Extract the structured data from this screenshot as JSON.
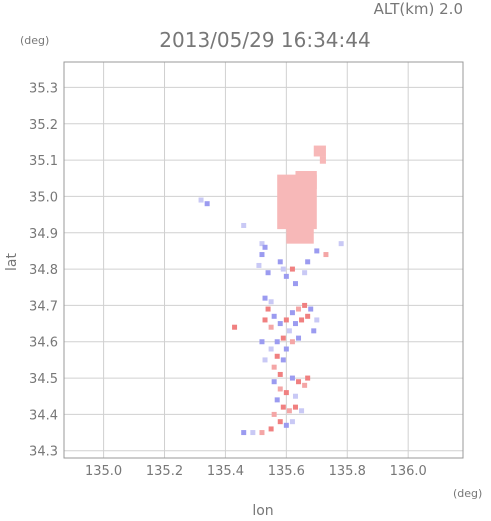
{
  "header": {
    "alt_label": "ALT(km) 2.0",
    "timestamp": "2013/05/29 16:34:44",
    "y_unit": "(deg)",
    "x_unit": "(deg)"
  },
  "chart_data": {
    "type": "scatter",
    "title": "2013/05/29 16:34:44",
    "subtitle": "ALT(km) 2.0",
    "xlabel": "lon",
    "ylabel": "lat",
    "xunit": "(deg)",
    "yunit": "(deg)",
    "xlim": [
      134.87,
      136.18
    ],
    "ylim": [
      34.28,
      35.37
    ],
    "xticks": [
      135.0,
      135.2,
      135.4,
      135.6,
      135.8,
      136.0
    ],
    "xtick_labels": [
      "135.0",
      "135.2",
      "135.4",
      "135.6",
      "135.8",
      "136.0"
    ],
    "yticks": [
      34.3,
      34.4,
      34.5,
      34.6,
      34.7,
      34.8,
      34.9,
      35.0,
      35.1,
      35.2,
      35.3
    ],
    "ytick_labels": [
      "34.3",
      "34.4",
      "34.5",
      "34.6",
      "34.7",
      "34.8",
      "34.9",
      "35.0",
      "35.1",
      "35.2",
      "35.3"
    ],
    "grid": true,
    "colors": {
      "main_echo": "#f7b8b8",
      "red": "#f08080",
      "blue": "#9b9bf0",
      "light_blue": "#c9c9f5",
      "pink": "#f4a6a6"
    },
    "regions": [
      {
        "type": "rect",
        "lon": [
          135.57,
          135.7
        ],
        "lat": [
          34.91,
          35.06
        ],
        "color": "main_echo"
      },
      {
        "type": "rect",
        "lon": [
          135.6,
          135.69
        ],
        "lat": [
          34.87,
          34.92
        ],
        "color": "main_echo"
      },
      {
        "type": "rect",
        "lon": [
          135.63,
          135.7
        ],
        "lat": [
          35.02,
          35.07
        ],
        "color": "main_echo"
      },
      {
        "type": "rect",
        "lon": [
          135.69,
          135.73
        ],
        "lat": [
          35.11,
          35.14
        ],
        "color": "main_echo"
      },
      {
        "type": "rect",
        "lon": [
          135.71,
          135.73
        ],
        "lat": [
          35.09,
          35.11
        ],
        "color": "main_echo"
      }
    ],
    "points": [
      {
        "lon": 135.34,
        "lat": 34.98,
        "color": "blue"
      },
      {
        "lon": 135.32,
        "lat": 34.99,
        "color": "light_blue"
      },
      {
        "lon": 135.52,
        "lat": 34.87,
        "color": "light_blue"
      },
      {
        "lon": 135.53,
        "lat": 34.86,
        "color": "blue"
      },
      {
        "lon": 135.52,
        "lat": 34.84,
        "color": "blue"
      },
      {
        "lon": 135.51,
        "lat": 34.81,
        "color": "light_blue"
      },
      {
        "lon": 135.54,
        "lat": 34.79,
        "color": "blue"
      },
      {
        "lon": 135.58,
        "lat": 34.82,
        "color": "blue"
      },
      {
        "lon": 135.59,
        "lat": 34.8,
        "color": "light_blue"
      },
      {
        "lon": 135.6,
        "lat": 34.78,
        "color": "blue"
      },
      {
        "lon": 135.62,
        "lat": 34.8,
        "color": "red"
      },
      {
        "lon": 135.63,
        "lat": 34.76,
        "color": "blue"
      },
      {
        "lon": 135.66,
        "lat": 34.79,
        "color": "light_blue"
      },
      {
        "lon": 135.67,
        "lat": 34.82,
        "color": "blue"
      },
      {
        "lon": 135.7,
        "lat": 34.85,
        "color": "blue"
      },
      {
        "lon": 135.73,
        "lat": 34.84,
        "color": "pink"
      },
      {
        "lon": 135.78,
        "lat": 34.87,
        "color": "light_blue"
      },
      {
        "lon": 135.46,
        "lat": 34.92,
        "color": "light_blue"
      },
      {
        "lon": 135.53,
        "lat": 34.72,
        "color": "blue"
      },
      {
        "lon": 135.55,
        "lat": 34.71,
        "color": "light_blue"
      },
      {
        "lon": 135.54,
        "lat": 34.69,
        "color": "red"
      },
      {
        "lon": 135.56,
        "lat": 34.67,
        "color": "blue"
      },
      {
        "lon": 135.53,
        "lat": 34.66,
        "color": "red"
      },
      {
        "lon": 135.55,
        "lat": 34.64,
        "color": "pink"
      },
      {
        "lon": 135.58,
        "lat": 34.65,
        "color": "blue"
      },
      {
        "lon": 135.6,
        "lat": 34.66,
        "color": "red"
      },
      {
        "lon": 135.62,
        "lat": 34.68,
        "color": "blue"
      },
      {
        "lon": 135.64,
        "lat": 34.69,
        "color": "pink"
      },
      {
        "lon": 135.66,
        "lat": 34.7,
        "color": "red"
      },
      {
        "lon": 135.68,
        "lat": 34.69,
        "color": "blue"
      },
      {
        "lon": 135.67,
        "lat": 34.67,
        "color": "red"
      },
      {
        "lon": 135.65,
        "lat": 34.66,
        "color": "red"
      },
      {
        "lon": 135.63,
        "lat": 34.65,
        "color": "blue"
      },
      {
        "lon": 135.61,
        "lat": 34.63,
        "color": "light_blue"
      },
      {
        "lon": 135.59,
        "lat": 34.61,
        "color": "red"
      },
      {
        "lon": 135.57,
        "lat": 34.6,
        "color": "blue"
      },
      {
        "lon": 135.6,
        "lat": 34.58,
        "color": "blue"
      },
      {
        "lon": 135.62,
        "lat": 34.6,
        "color": "pink"
      },
      {
        "lon": 135.64,
        "lat": 34.61,
        "color": "blue"
      },
      {
        "lon": 135.55,
        "lat": 34.58,
        "color": "light_blue"
      },
      {
        "lon": 135.57,
        "lat": 34.56,
        "color": "red"
      },
      {
        "lon": 135.59,
        "lat": 34.55,
        "color": "blue"
      },
      {
        "lon": 135.56,
        "lat": 34.53,
        "color": "pink"
      },
      {
        "lon": 135.58,
        "lat": 34.51,
        "color": "red"
      },
      {
        "lon": 135.56,
        "lat": 34.49,
        "color": "blue"
      },
      {
        "lon": 135.58,
        "lat": 34.47,
        "color": "pink"
      },
      {
        "lon": 135.6,
        "lat": 34.46,
        "color": "red"
      },
      {
        "lon": 135.62,
        "lat": 34.5,
        "color": "blue"
      },
      {
        "lon": 135.64,
        "lat": 34.49,
        "color": "red"
      },
      {
        "lon": 135.66,
        "lat": 34.48,
        "color": "pink"
      },
      {
        "lon": 135.67,
        "lat": 34.5,
        "color": "red"
      },
      {
        "lon": 135.63,
        "lat": 34.45,
        "color": "light_blue"
      },
      {
        "lon": 135.57,
        "lat": 34.44,
        "color": "blue"
      },
      {
        "lon": 135.59,
        "lat": 34.42,
        "color": "red"
      },
      {
        "lon": 135.61,
        "lat": 34.41,
        "color": "pink"
      },
      {
        "lon": 135.63,
        "lat": 34.42,
        "color": "red"
      },
      {
        "lon": 135.65,
        "lat": 34.41,
        "color": "light_blue"
      },
      {
        "lon": 135.56,
        "lat": 34.4,
        "color": "pink"
      },
      {
        "lon": 135.58,
        "lat": 34.38,
        "color": "red"
      },
      {
        "lon": 135.6,
        "lat": 34.37,
        "color": "blue"
      },
      {
        "lon": 135.62,
        "lat": 34.38,
        "color": "light_blue"
      },
      {
        "lon": 135.55,
        "lat": 34.36,
        "color": "red"
      },
      {
        "lon": 135.52,
        "lat": 34.35,
        "color": "pink"
      },
      {
        "lon": 135.49,
        "lat": 34.35,
        "color": "light_blue"
      },
      {
        "lon": 135.46,
        "lat": 34.35,
        "color": "blue"
      },
      {
        "lon": 135.43,
        "lat": 34.64,
        "color": "red"
      },
      {
        "lon": 135.52,
        "lat": 34.6,
        "color": "blue"
      },
      {
        "lon": 135.53,
        "lat": 34.55,
        "color": "light_blue"
      },
      {
        "lon": 135.69,
        "lat": 34.63,
        "color": "blue"
      },
      {
        "lon": 135.7,
        "lat": 34.66,
        "color": "light_blue"
      }
    ]
  }
}
